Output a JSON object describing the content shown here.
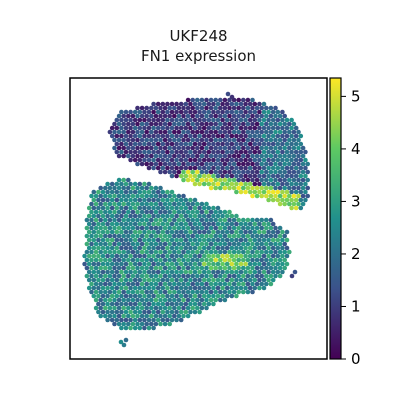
{
  "chart_data": {
    "type": "heatmap",
    "title_lines": [
      "UKF248",
      "FN1 expression"
    ],
    "xlabel": "",
    "ylabel": "",
    "colormap": "viridis",
    "colormap_stops": [
      "#440154",
      "#3b528b",
      "#21918c",
      "#5ec962",
      "#fde725"
    ],
    "colorbar": {
      "range": [
        0,
        5.35
      ],
      "ticks": [
        0,
        1,
        2,
        3,
        4,
        5
      ],
      "tick_labels": [
        "0",
        "1",
        "2",
        "3",
        "4",
        "5"
      ]
    },
    "grid": false,
    "legend": "colorbar-right",
    "regions": [
      {
        "name": "upper lobe",
        "mean_value": 1.0
      },
      {
        "name": "central band",
        "mean_value": 4.5
      },
      {
        "name": "lower lobe",
        "mean_value": 2.4
      }
    ]
  }
}
